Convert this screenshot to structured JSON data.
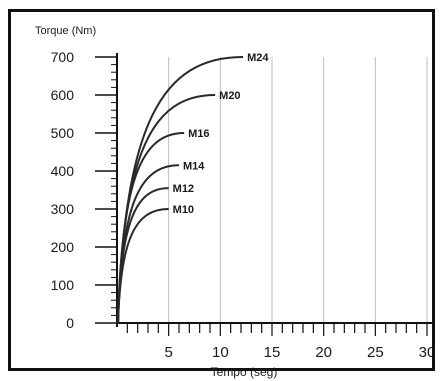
{
  "chart_data": {
    "type": "line",
    "ylabel": "Torque (Nm)",
    "xlabel": "Tempo (seg)",
    "xlim": [
      0,
      30
    ],
    "ylim": [
      0,
      700
    ],
    "x_ticks": [
      5,
      10,
      15,
      20,
      25,
      30
    ],
    "y_ticks": [
      0,
      100,
      200,
      300,
      400,
      500,
      600,
      700
    ],
    "grid": true,
    "series": [
      {
        "name": "M10",
        "end_time": 5,
        "end_torque": 300
      },
      {
        "name": "M12",
        "end_time": 5,
        "end_torque": 355
      },
      {
        "name": "M14",
        "end_time": 6,
        "end_torque": 415
      },
      {
        "name": "M16",
        "end_time": 6.5,
        "end_torque": 500
      },
      {
        "name": "M20",
        "end_time": 9.5,
        "end_torque": 600
      },
      {
        "name": "M24",
        "end_time": 12.2,
        "end_torque": 700
      }
    ],
    "colors": {
      "line": "#2a2a2a",
      "grid": "#bdbdbd",
      "frame": "#111111"
    }
  }
}
